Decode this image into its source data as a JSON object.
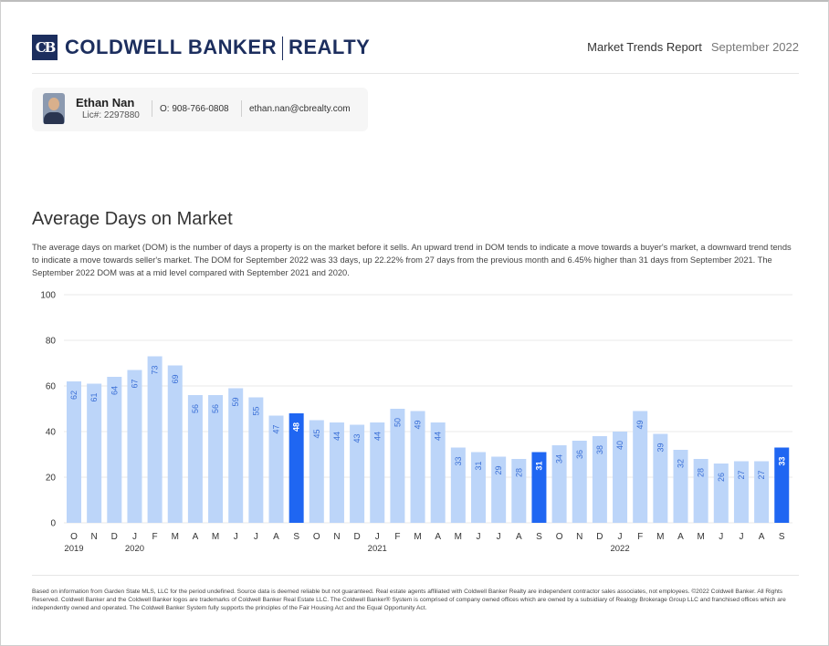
{
  "header": {
    "logo_text": "CB",
    "brand_left": "COLDWELL BANKER",
    "brand_right": "REALTY",
    "report_title": "Market Trends Report",
    "report_month": "September 2022"
  },
  "agent": {
    "name": "Ethan Nan",
    "license": "Lic#: 2297880",
    "phone": "O: 908-766-0808",
    "email": "ethan.nan@cbrealty.com"
  },
  "section": {
    "title": "Average Days on Market",
    "description": "The average days on market (DOM) is the number of days a property is on the market before it sells. An upward trend in DOM tends to indicate a move towards a buyer's market, a downward trend tends to indicate a move towards seller's market. The DOM for September 2022 was 33 days, up 22.22% from 27 days from the previous month and 6.45% higher than 31 days from September 2021. The September 2022 DOM was at a mid level compared with September 2021 and 2020."
  },
  "chart_data": {
    "type": "bar",
    "categories": [
      "O",
      "N",
      "D",
      "J",
      "F",
      "M",
      "A",
      "M",
      "J",
      "J",
      "A",
      "S",
      "O",
      "N",
      "D",
      "J",
      "F",
      "M",
      "A",
      "M",
      "J",
      "J",
      "A",
      "S",
      "O",
      "N",
      "D",
      "J",
      "F",
      "M",
      "A",
      "M",
      "J",
      "J",
      "A",
      "S"
    ],
    "year_labels": [
      {
        "index": 0,
        "label": "2019"
      },
      {
        "index": 3,
        "label": "2020"
      },
      {
        "index": 15,
        "label": "2021"
      },
      {
        "index": 27,
        "label": "2022"
      }
    ],
    "values": [
      62,
      61,
      64,
      67,
      73,
      69,
      56,
      56,
      59,
      55,
      47,
      48,
      45,
      44,
      43,
      44,
      50,
      49,
      44,
      33,
      31,
      29,
      28,
      31,
      34,
      36,
      38,
      40,
      49,
      39,
      32,
      28,
      26,
      27,
      27,
      33
    ],
    "highlight_indices": [
      11,
      23,
      35
    ],
    "yticks": [
      0,
      20,
      40,
      60,
      80,
      100
    ],
    "ylim": [
      0,
      100
    ],
    "grid": true,
    "colors": {
      "bar": "#bcd5f9",
      "highlight": "#1f66f2",
      "label": "#3a6fd6",
      "highlight_label": "#ffffff",
      "grid": "#e8e8e8",
      "axis": "#333333"
    }
  },
  "footer": {
    "disclaimer": "Based on information from Garden State MLS, LLC for the period undefined. Source data is deemed reliable but not guaranteed. Real estate agents affiliated with Coldwell Banker Realty are independent contractor sales associates, not employees. ©2022 Coldwell Banker. All Rights Reserved. Coldwell Banker and the Coldwell Banker logos are trademarks of Coldwell Banker Real Estate LLC. The Coldwell Banker® System is comprised of company owned offices which are owned by a subsidiary of Realogy Brokerage Group LLC and franchised offices which are independently owned and operated. The Coldwell Banker System fully supports the principles of the Fair Housing Act and the Equal Opportunity Act."
  }
}
